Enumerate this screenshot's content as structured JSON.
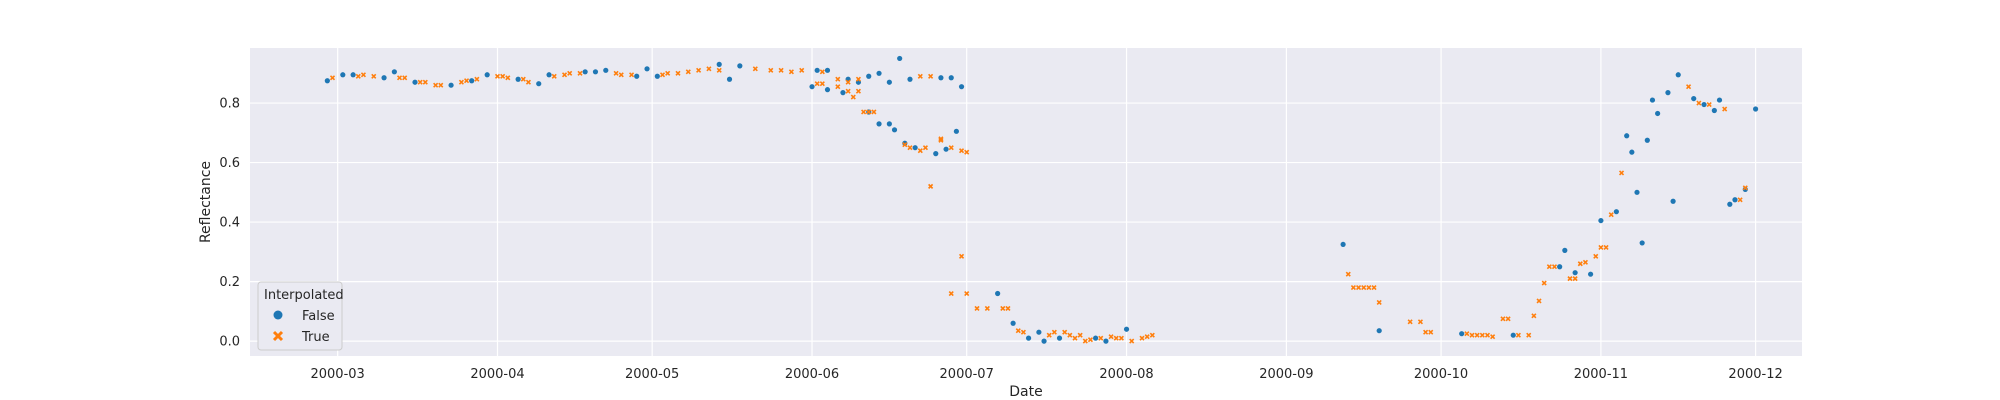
{
  "chart_data": {
    "type": "scatter",
    "xlabel": "Date",
    "ylabel": "Reflectance",
    "x_axis_kind": "date",
    "xlim": [
      "2000-02-13",
      "2000-12-10"
    ],
    "ylim": [
      -0.05,
      0.985
    ],
    "x_ticks": [
      "2000-03-01",
      "2000-04-01",
      "2000-05-01",
      "2000-06-01",
      "2000-07-01",
      "2000-08-01",
      "2000-09-01",
      "2000-10-01",
      "2000-11-01",
      "2000-12-01"
    ],
    "x_tick_labels": [
      "2000-03",
      "2000-04",
      "2000-05",
      "2000-06",
      "2000-07",
      "2000-08",
      "2000-09",
      "2000-10",
      "2000-11",
      "2000-12"
    ],
    "y_ticks": [
      0.0,
      0.2,
      0.4,
      0.6,
      0.8
    ],
    "y_tick_labels": [
      "0.0",
      "0.2",
      "0.4",
      "0.6",
      "0.8"
    ],
    "grid": true,
    "legend": {
      "title": "Interpolated",
      "placement": "lower-left"
    },
    "series": [
      {
        "name": "False",
        "marker": "circle",
        "color": "#1f77b4",
        "points": [
          [
            "2000-02-28",
            0.875
          ],
          [
            "2000-03-02",
            0.895
          ],
          [
            "2000-03-04",
            0.895
          ],
          [
            "2000-03-10",
            0.885
          ],
          [
            "2000-03-12",
            0.905
          ],
          [
            "2000-03-16",
            0.87
          ],
          [
            "2000-03-23",
            0.86
          ],
          [
            "2000-03-27",
            0.875
          ],
          [
            "2000-03-30",
            0.895
          ],
          [
            "2000-04-05",
            0.88
          ],
          [
            "2000-04-09",
            0.865
          ],
          [
            "2000-04-11",
            0.895
          ],
          [
            "2000-04-18",
            0.905
          ],
          [
            "2000-04-20",
            0.905
          ],
          [
            "2000-04-22",
            0.91
          ],
          [
            "2000-04-28",
            0.89
          ],
          [
            "2000-04-30",
            0.915
          ],
          [
            "2000-05-02",
            0.89
          ],
          [
            "2000-05-14",
            0.93
          ],
          [
            "2000-05-16",
            0.88
          ],
          [
            "2000-05-18",
            0.925
          ],
          [
            "2000-06-02",
            0.91
          ],
          [
            "2000-06-04",
            0.91
          ],
          [
            "2000-06-08",
            0.88
          ],
          [
            "2000-06-10",
            0.87
          ],
          [
            "2000-06-12",
            0.89
          ],
          [
            "2000-06-14",
            0.9
          ],
          [
            "2000-06-16",
            0.87
          ],
          [
            "2000-06-18",
            0.95
          ],
          [
            "2000-06-20",
            0.88
          ],
          [
            "2000-06-26",
            0.885
          ],
          [
            "2000-06-28",
            0.885
          ],
          [
            "2000-06-30",
            0.855
          ],
          [
            "2000-06-01",
            0.855
          ],
          [
            "2000-06-04",
            0.845
          ],
          [
            "2000-06-07",
            0.835
          ],
          [
            "2000-06-12",
            0.77
          ],
          [
            "2000-06-14",
            0.73
          ],
          [
            "2000-06-16",
            0.73
          ],
          [
            "2000-06-17",
            0.71
          ],
          [
            "2000-06-19",
            0.665
          ],
          [
            "2000-06-21",
            0.65
          ],
          [
            "2000-06-25",
            0.63
          ],
          [
            "2000-06-27",
            0.645
          ],
          [
            "2000-06-29",
            0.705
          ],
          [
            "2000-07-07",
            0.16
          ],
          [
            "2000-07-10",
            0.06
          ],
          [
            "2000-07-13",
            0.01
          ],
          [
            "2000-07-15",
            0.03
          ],
          [
            "2000-07-16",
            0.0
          ],
          [
            "2000-07-19",
            0.01
          ],
          [
            "2000-07-26",
            0.01
          ],
          [
            "2000-07-28",
            0.0
          ],
          [
            "2000-08-01",
            0.04
          ],
          [
            "2000-09-12",
            0.325
          ],
          [
            "2000-09-19",
            0.035
          ],
          [
            "2000-10-05",
            0.025
          ],
          [
            "2000-10-15",
            0.02
          ],
          [
            "2000-10-24",
            0.25
          ],
          [
            "2000-10-25",
            0.305
          ],
          [
            "2000-10-27",
            0.23
          ],
          [
            "2000-10-30",
            0.225
          ],
          [
            "2000-11-01",
            0.405
          ],
          [
            "2000-11-04",
            0.435
          ],
          [
            "2000-11-06",
            0.69
          ],
          [
            "2000-11-07",
            0.635
          ],
          [
            "2000-11-08",
            0.5
          ],
          [
            "2000-11-09",
            0.33
          ],
          [
            "2000-11-10",
            0.675
          ],
          [
            "2000-11-11",
            0.81
          ],
          [
            "2000-11-12",
            0.765
          ],
          [
            "2000-11-14",
            0.835
          ],
          [
            "2000-11-15",
            0.47
          ],
          [
            "2000-11-16",
            0.895
          ],
          [
            "2000-11-19",
            0.815
          ],
          [
            "2000-11-21",
            0.795
          ],
          [
            "2000-11-23",
            0.775
          ],
          [
            "2000-11-24",
            0.81
          ],
          [
            "2000-11-26",
            0.46
          ],
          [
            "2000-11-27",
            0.475
          ],
          [
            "2000-11-29",
            0.51
          ],
          [
            "2000-12-01",
            0.78
          ]
        ]
      },
      {
        "name": "True",
        "marker": "x",
        "color": "#ff7f0e",
        "points": [
          [
            "2000-02-29",
            0.885
          ],
          [
            "2000-03-05",
            0.89
          ],
          [
            "2000-03-06",
            0.895
          ],
          [
            "2000-03-08",
            0.89
          ],
          [
            "2000-03-13",
            0.885
          ],
          [
            "2000-03-14",
            0.885
          ],
          [
            "2000-03-17",
            0.87
          ],
          [
            "2000-03-18",
            0.87
          ],
          [
            "2000-03-20",
            0.86
          ],
          [
            "2000-03-21",
            0.86
          ],
          [
            "2000-03-25",
            0.87
          ],
          [
            "2000-03-26",
            0.875
          ],
          [
            "2000-03-28",
            0.88
          ],
          [
            "2000-04-01",
            0.89
          ],
          [
            "2000-04-02",
            0.89
          ],
          [
            "2000-04-03",
            0.885
          ],
          [
            "2000-04-06",
            0.88
          ],
          [
            "2000-04-07",
            0.87
          ],
          [
            "2000-04-12",
            0.89
          ],
          [
            "2000-04-14",
            0.895
          ],
          [
            "2000-04-15",
            0.9
          ],
          [
            "2000-04-17",
            0.9
          ],
          [
            "2000-04-24",
            0.9
          ],
          [
            "2000-04-25",
            0.895
          ],
          [
            "2000-04-27",
            0.895
          ],
          [
            "2000-05-03",
            0.895
          ],
          [
            "2000-05-04",
            0.9
          ],
          [
            "2000-05-06",
            0.9
          ],
          [
            "2000-05-08",
            0.905
          ],
          [
            "2000-05-10",
            0.91
          ],
          [
            "2000-05-12",
            0.915
          ],
          [
            "2000-05-14",
            0.91
          ],
          [
            "2000-05-21",
            0.915
          ],
          [
            "2000-05-24",
            0.91
          ],
          [
            "2000-05-26",
            0.91
          ],
          [
            "2000-05-28",
            0.905
          ],
          [
            "2000-05-30",
            0.91
          ],
          [
            "2000-06-03",
            0.905
          ],
          [
            "2000-06-06",
            0.88
          ],
          [
            "2000-06-08",
            0.87
          ],
          [
            "2000-06-10",
            0.88
          ],
          [
            "2000-06-22",
            0.89
          ],
          [
            "2000-06-24",
            0.89
          ],
          [
            "2000-06-02",
            0.865
          ],
          [
            "2000-06-03",
            0.865
          ],
          [
            "2000-06-06",
            0.855
          ],
          [
            "2000-06-08",
            0.84
          ],
          [
            "2000-06-09",
            0.82
          ],
          [
            "2000-06-10",
            0.84
          ],
          [
            "2000-06-11",
            0.77
          ],
          [
            "2000-06-12",
            0.77
          ],
          [
            "2000-06-13",
            0.77
          ],
          [
            "2000-06-19",
            0.66
          ],
          [
            "2000-06-20",
            0.65
          ],
          [
            "2000-06-22",
            0.64
          ],
          [
            "2000-06-23",
            0.65
          ],
          [
            "2000-06-26",
            0.68
          ],
          [
            "2000-06-28",
            0.65
          ],
          [
            "2000-06-30",
            0.64
          ],
          [
            "2000-07-01",
            0.635
          ],
          [
            "2000-06-24",
            0.52
          ],
          [
            "2000-06-26",
            0.675
          ],
          [
            "2000-06-28",
            0.16
          ],
          [
            "2000-06-30",
            0.285
          ],
          [
            "2000-07-01",
            0.16
          ],
          [
            "2000-07-03",
            0.11
          ],
          [
            "2000-07-05",
            0.11
          ],
          [
            "2000-07-08",
            0.11
          ],
          [
            "2000-07-09",
            0.11
          ],
          [
            "2000-07-11",
            0.035
          ],
          [
            "2000-07-12",
            0.03
          ],
          [
            "2000-07-17",
            0.02
          ],
          [
            "2000-07-18",
            0.03
          ],
          [
            "2000-07-20",
            0.03
          ],
          [
            "2000-07-21",
            0.02
          ],
          [
            "2000-07-22",
            0.01
          ],
          [
            "2000-07-23",
            0.02
          ],
          [
            "2000-07-24",
            0.0
          ],
          [
            "2000-07-25",
            0.005
          ],
          [
            "2000-07-27",
            0.01
          ],
          [
            "2000-07-29",
            0.015
          ],
          [
            "2000-07-30",
            0.01
          ],
          [
            "2000-07-31",
            0.01
          ],
          [
            "2000-08-02",
            0.0
          ],
          [
            "2000-08-04",
            0.01
          ],
          [
            "2000-08-05",
            0.015
          ],
          [
            "2000-08-06",
            0.02
          ],
          [
            "2000-09-13",
            0.225
          ],
          [
            "2000-09-14",
            0.18
          ],
          [
            "2000-09-15",
            0.18
          ],
          [
            "2000-09-16",
            0.18
          ],
          [
            "2000-09-17",
            0.18
          ],
          [
            "2000-09-18",
            0.18
          ],
          [
            "2000-09-19",
            0.13
          ],
          [
            "2000-09-25",
            0.065
          ],
          [
            "2000-09-27",
            0.065
          ],
          [
            "2000-09-28",
            0.03
          ],
          [
            "2000-09-29",
            0.03
          ],
          [
            "2000-10-06",
            0.025
          ],
          [
            "2000-10-07",
            0.02
          ],
          [
            "2000-10-08",
            0.02
          ],
          [
            "2000-10-09",
            0.02
          ],
          [
            "2000-10-10",
            0.02
          ],
          [
            "2000-10-11",
            0.015
          ],
          [
            "2000-10-13",
            0.075
          ],
          [
            "2000-10-14",
            0.075
          ],
          [
            "2000-10-16",
            0.02
          ],
          [
            "2000-10-18",
            0.02
          ],
          [
            "2000-10-19",
            0.085
          ],
          [
            "2000-10-20",
            0.135
          ],
          [
            "2000-10-21",
            0.195
          ],
          [
            "2000-10-22",
            0.25
          ],
          [
            "2000-10-23",
            0.25
          ],
          [
            "2000-10-26",
            0.21
          ],
          [
            "2000-10-27",
            0.21
          ],
          [
            "2000-10-28",
            0.26
          ],
          [
            "2000-10-29",
            0.265
          ],
          [
            "2000-10-31",
            0.285
          ],
          [
            "2000-11-01",
            0.315
          ],
          [
            "2000-11-02",
            0.315
          ],
          [
            "2000-11-03",
            0.425
          ],
          [
            "2000-11-05",
            0.565
          ],
          [
            "2000-11-18",
            0.855
          ],
          [
            "2000-11-20",
            0.8
          ],
          [
            "2000-11-22",
            0.795
          ],
          [
            "2000-11-25",
            0.78
          ],
          [
            "2000-11-28",
            0.475
          ],
          [
            "2000-11-29",
            0.515
          ]
        ]
      }
    ]
  }
}
